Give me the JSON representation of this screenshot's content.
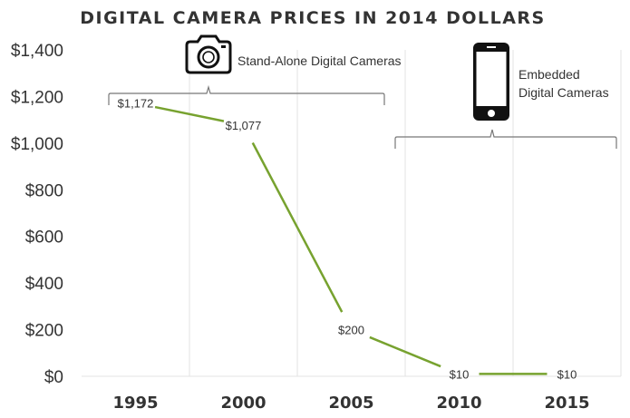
{
  "chart_data": {
    "type": "line",
    "title": "DIGITAL CAMERA PRICES IN 2014 DOLLARS",
    "x": [
      1995,
      2000,
      2005,
      2010,
      2015
    ],
    "x_tick_labels": [
      "1995",
      "2000",
      "2005",
      "2010",
      "2015"
    ],
    "y_tick_labels": [
      "$0",
      "$200",
      "$400",
      "$600",
      "$800",
      "$1,000",
      "$1,200",
      "$1,400"
    ],
    "y_ticks": [
      0,
      200,
      400,
      600,
      800,
      1000,
      1200,
      1400
    ],
    "ylim": [
      0,
      1400
    ],
    "series": [
      {
        "values": [
          1172,
          1077,
          200,
          10,
          10
        ],
        "labels": [
          "$1,172",
          "$1,077",
          "$200",
          "$10",
          "$10"
        ],
        "color": "#77a22f"
      }
    ],
    "annotations": [
      {
        "text": "Stand-Alone Digital Cameras",
        "icon": "camera-icon",
        "x_range": [
          1994,
          2007
        ]
      },
      {
        "lines": [
          "Embedded",
          "Digital Cameras"
        ],
        "icon": "smartphone-icon",
        "x_range": [
          2008,
          2018
        ]
      }
    ],
    "grid": "vertical",
    "legend": "none"
  }
}
